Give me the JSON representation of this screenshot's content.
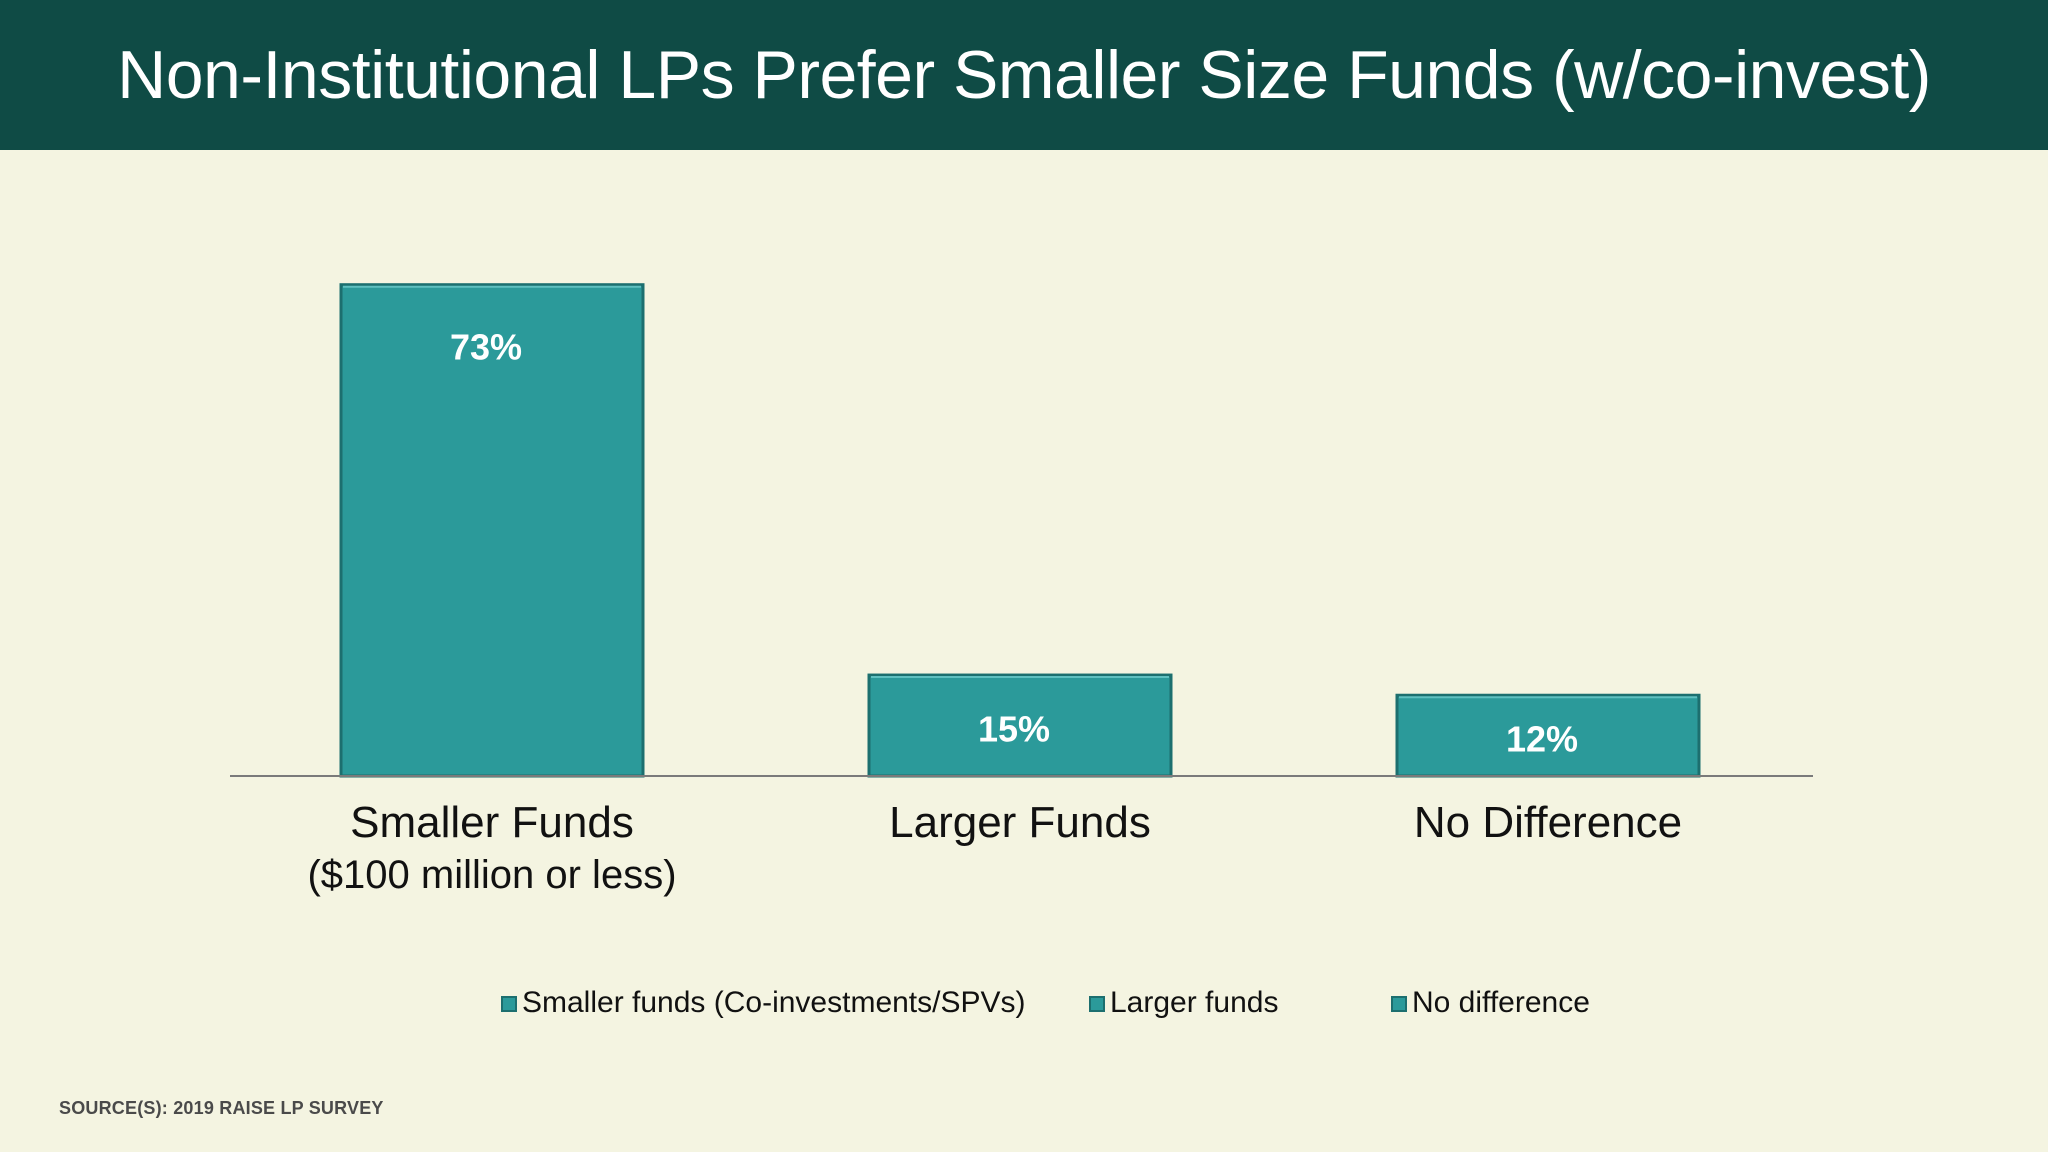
{
  "slide": {
    "title": "Non-Institutional LPs Prefer Smaller Size Funds (w/co-invest)",
    "source": "SOURCE(S): 2019 RAISE LP SURVEY"
  },
  "colors": {
    "header_bg": "#0f4b45",
    "background": "#f4f4e1",
    "bar_fill": "#2b9a9a",
    "bar_edge": "#1c6f6f",
    "axis": "#7a7a7a"
  },
  "chart_data": {
    "type": "bar",
    "categories": [
      [
        "Smaller Funds",
        "($100 million or less)"
      ],
      [
        "Larger Funds"
      ],
      [
        "No Difference"
      ]
    ],
    "values": [
      73,
      15,
      12
    ],
    "data_labels": [
      "73%",
      "15%",
      "12%"
    ],
    "unit": "%",
    "ylim": [
      0,
      80
    ],
    "grid": false,
    "legend": {
      "placement": "bottom",
      "entries": [
        "Smaller funds (Co-investments/SPVs)",
        "Larger funds",
        "No difference"
      ]
    }
  }
}
